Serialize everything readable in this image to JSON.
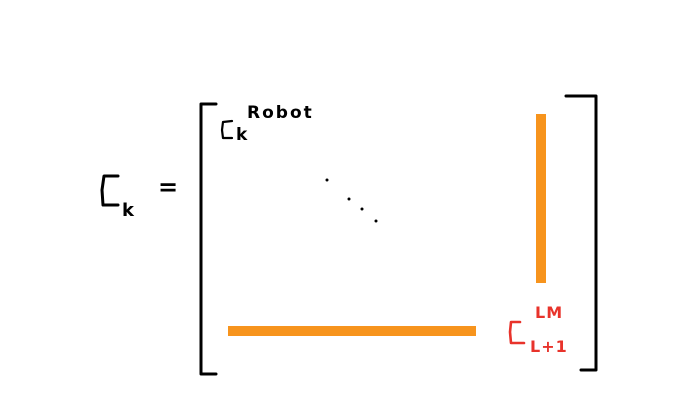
{
  "equation": {
    "lhs_symbol": "C",
    "lhs_subscript": "k",
    "equals": "=",
    "top_left_entry": {
      "symbol": "C",
      "subscript": "k",
      "superscript": "Robot"
    },
    "bottom_right_entry": {
      "symbol": "C",
      "subscript": "L+1",
      "superscript": "LM"
    }
  },
  "colors": {
    "ink": "#000000",
    "highlight_bar": "#f7941d",
    "red_entry": "#e8332b"
  }
}
